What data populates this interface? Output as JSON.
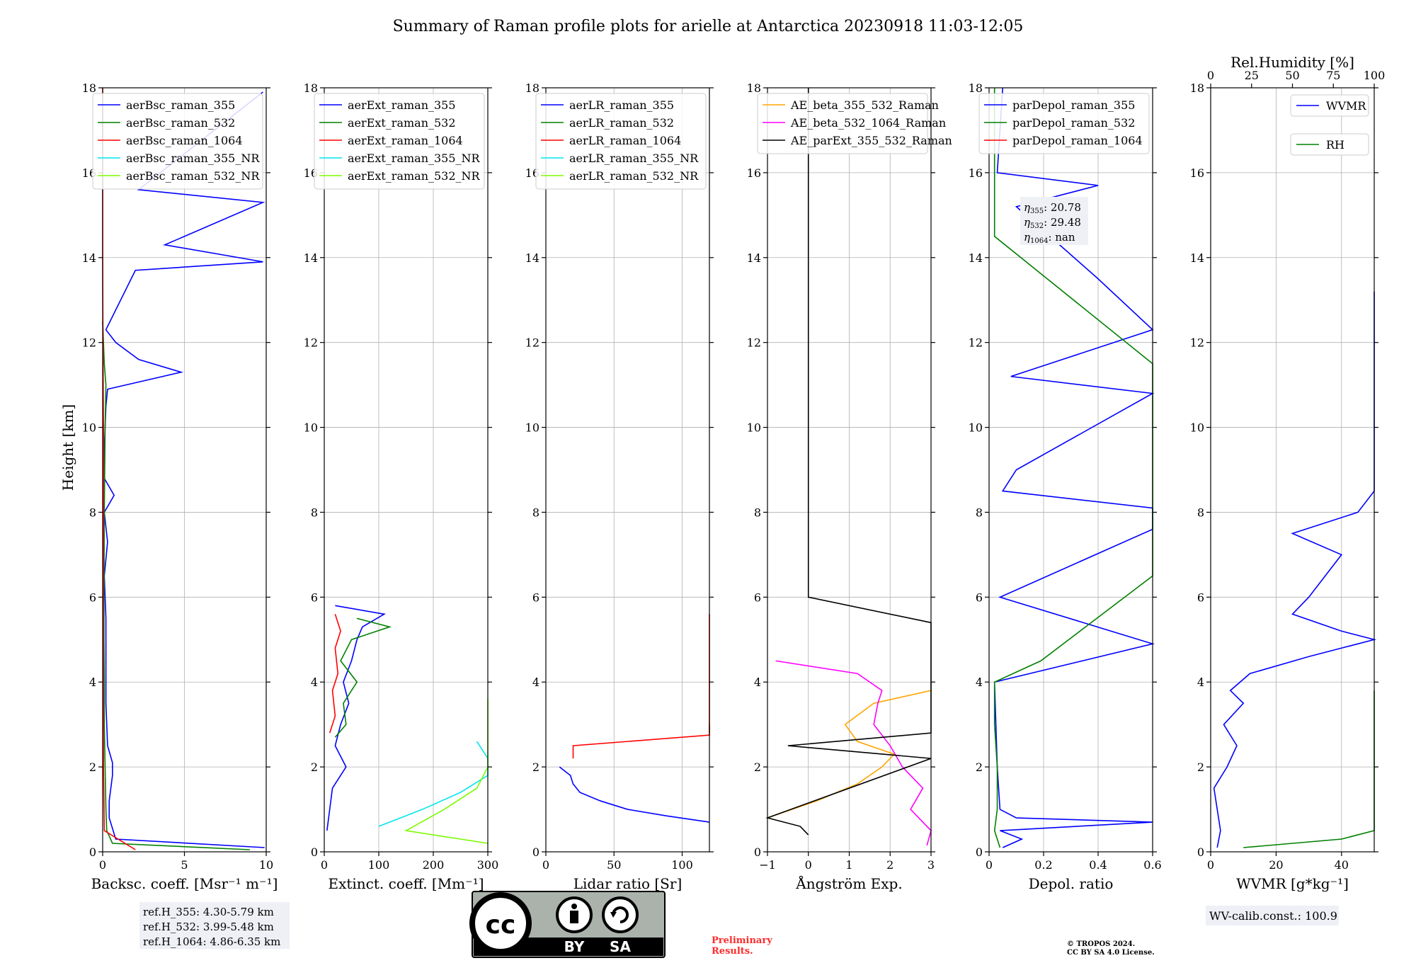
{
  "title": "Summary of Raman profile plots for arielle at Antarctica 20230918 11:03-12:05",
  "y_axis_label": "Height [km]",
  "chart_data": [
    {
      "type": "line",
      "id": "backscatter",
      "xlabel": "Backsc. coeff. [Msr⁻¹ m⁻¹]",
      "xlim": [
        0,
        10
      ],
      "xticks": [
        0,
        5,
        10
      ],
      "ylim": [
        0,
        18
      ],
      "yticks": [
        0,
        2,
        4,
        6,
        8,
        10,
        12,
        14,
        16,
        18
      ],
      "grid": true,
      "legend_position": "top-left",
      "series": [
        {
          "name": "aerBsc_raman_355",
          "color": "#0000ff",
          "y": [
            0.1,
            0.3,
            0.8,
            1.2,
            1.8,
            2.1,
            2.5,
            3.5,
            4.5,
            5.5,
            6.5,
            7.3,
            8.0,
            8.4,
            8.8,
            9.5,
            10.5,
            10.9,
            11.3,
            11.6,
            12.0,
            12.3,
            13.7,
            13.9,
            14.3,
            15.3,
            15.6,
            17.9
          ],
          "x": [
            9.9,
            0.8,
            0.4,
            0.4,
            0.6,
            0.6,
            0.3,
            0.2,
            0.2,
            0.2,
            0.1,
            0.3,
            0.1,
            0.7,
            0.1,
            0.1,
            0.2,
            0.3,
            4.8,
            2.2,
            0.8,
            0.2,
            2.0,
            9.8,
            3.8,
            9.8,
            2.2,
            9.8
          ]
        },
        {
          "name": "aerBsc_raman_532",
          "color": "#008000",
          "y": [
            0.05,
            0.2,
            0.5,
            1.0,
            2.0,
            3.0,
            4.0,
            5.0,
            6.0,
            8.0,
            10.0,
            11.0,
            11.5,
            12.0,
            12.5
          ],
          "x": [
            9.0,
            0.6,
            0.25,
            0.2,
            0.15,
            0.1,
            0.1,
            0.08,
            0.08,
            0.1,
            0.15,
            0.2,
            0.1,
            0.05,
            0.0
          ]
        },
        {
          "name": "aerBsc_raman_1064",
          "color": "#ff0000",
          "y": [
            0.05,
            0.5,
            2.0,
            4.0,
            6.0,
            8.0,
            10.0,
            12.0,
            14.0,
            16.0,
            18.0
          ],
          "x": [
            2.0,
            0.1,
            0.05,
            0.03,
            0.03,
            0.05,
            0.05,
            0.02,
            0.0,
            0.0,
            0.0
          ]
        },
        {
          "name": "aerBsc_raman_355_NR",
          "color": "#00e5ee",
          "y": [],
          "x": []
        },
        {
          "name": "aerBsc_raman_532_NR",
          "color": "#7cfc00",
          "y": [],
          "x": []
        }
      ]
    },
    {
      "type": "line",
      "id": "extinction",
      "xlabel": "Extinct. coeff. [Mm⁻¹]",
      "xlim": [
        0,
        300
      ],
      "xticks": [
        0,
        100,
        200,
        300
      ],
      "ylim": [
        0,
        18
      ],
      "yticks": [
        0,
        2,
        4,
        6,
        8,
        10,
        12,
        14,
        16,
        18
      ],
      "grid": true,
      "legend_position": "top-left",
      "series": [
        {
          "name": "aerExt_raman_355",
          "color": "#0000ff",
          "y": [
            0.5,
            1.0,
            1.5,
            2.0,
            2.5,
            3.0,
            3.5,
            4.0,
            4.5,
            5.0,
            5.3,
            5.6,
            5.8
          ],
          "x": [
            5,
            10,
            15,
            40,
            20,
            30,
            45,
            35,
            50,
            60,
            70,
            110,
            20
          ]
        },
        {
          "name": "aerExt_raman_532",
          "color": "#008000",
          "y": [
            2.7,
            3.0,
            3.5,
            4.0,
            4.5,
            5.0,
            5.3,
            5.5
          ],
          "x": [
            20,
            40,
            35,
            60,
            30,
            50,
            120,
            60
          ]
        },
        {
          "name": "aerExt_raman_1064",
          "color": "#ff0000",
          "y": [
            2.8,
            3.2,
            3.8,
            4.2,
            4.8,
            5.2,
            5.6
          ],
          "x": [
            10,
            20,
            15,
            25,
            20,
            30,
            20
          ]
        },
        {
          "name": "aerExt_raman_355_NR",
          "color": "#00e5ee",
          "y": [
            0.6,
            1.0,
            1.4,
            1.8,
            2.2,
            2.6
          ],
          "x": [
            100,
            180,
            250,
            300,
            300,
            280
          ]
        },
        {
          "name": "aerExt_raman_532_NR",
          "color": "#7cfc00",
          "y": [
            0.2,
            0.5,
            1.0,
            1.5,
            2.0,
            2.5,
            2.8,
            3.6
          ],
          "x": [
            300,
            150,
            220,
            280,
            300,
            300,
            300,
            300
          ]
        }
      ]
    },
    {
      "type": "line",
      "id": "lidar_ratio",
      "xlabel": "Lidar ratio [Sr]",
      "xlim": [
        0,
        120
      ],
      "xticks": [
        0,
        50,
        100
      ],
      "ylim": [
        0,
        18
      ],
      "yticks": [
        0,
        2,
        4,
        6,
        8,
        10,
        12,
        14,
        16,
        18
      ],
      "grid": true,
      "legend_position": "top-left",
      "series": [
        {
          "name": "aerLR_raman_355",
          "color": "#0000ff",
          "y": [
            0.7,
            0.85,
            1.0,
            1.2,
            1.4,
            1.6,
            1.8,
            2.0
          ],
          "x": [
            120,
            88,
            60,
            40,
            25,
            20,
            18,
            10
          ]
        },
        {
          "name": "aerLR_raman_532",
          "color": "#008000",
          "y": [
            2.8,
            3.0
          ],
          "x": [
            120,
            120
          ]
        },
        {
          "name": "aerLR_raman_1064",
          "color": "#ff0000",
          "y": [
            2.2,
            2.5,
            2.75,
            3.2,
            3.6,
            4.0,
            4.6,
            5.1,
            5.6
          ],
          "x": [
            20,
            20,
            120,
            120,
            120,
            120,
            120,
            120,
            120
          ]
        },
        {
          "name": "aerLR_raman_355_NR",
          "color": "#00e5ee",
          "y": [],
          "x": []
        },
        {
          "name": "aerLR_raman_532_NR",
          "color": "#7cfc00",
          "y": [],
          "x": []
        }
      ]
    },
    {
      "type": "line",
      "id": "angstrom",
      "xlabel": "Ångström Exp.",
      "xlim": [
        -1,
        3
      ],
      "xticks": [
        -1,
        0,
        1,
        2,
        3
      ],
      "ylim": [
        0,
        18
      ],
      "yticks": [
        0,
        2,
        4,
        6,
        8,
        10,
        12,
        14,
        16,
        18
      ],
      "grid": true,
      "legend_position": "top-left",
      "series": [
        {
          "name": "AE_beta_355_532_Raman",
          "color": "#ffa500",
          "y": [
            0.8,
            1.2,
            1.6,
            2.0,
            2.3,
            2.6,
            3.0,
            3.5,
            3.8
          ],
          "x": [
            -1.0,
            0.2,
            1.2,
            1.8,
            2.1,
            1.2,
            0.9,
            1.6,
            3.0
          ]
        },
        {
          "name": "AE_beta_532_1064_Raman",
          "color": "#ff00ff",
          "y": [
            0.15,
            0.5,
            1.0,
            1.5,
            2.0,
            2.5,
            3.0,
            3.5,
            3.8,
            4.2,
            4.5
          ],
          "x": [
            2.9,
            3.0,
            2.5,
            2.8,
            2.3,
            2.0,
            1.6,
            1.7,
            1.8,
            1.2,
            -0.8
          ]
        },
        {
          "name": "AE_parExt_355_532_Raman",
          "color": "#000000",
          "y": [
            0.4,
            0.6,
            0.8,
            2.2,
            2.5,
            2.8,
            3.5,
            3.9,
            4.4,
            4.9,
            5.4,
            6.0,
            18.0
          ],
          "x": [
            0.0,
            -0.2,
            -1.0,
            3.0,
            -0.5,
            3.0,
            3.0,
            3.0,
            3.0,
            3.0,
            3.0,
            0.0,
            0.0
          ]
        }
      ]
    },
    {
      "type": "line",
      "id": "depolarization",
      "xlabel": "Depol. ratio",
      "xlim": [
        0.0,
        0.6
      ],
      "xticks": [
        0.0,
        0.2,
        0.4,
        0.6
      ],
      "ylim": [
        0,
        18
      ],
      "yticks": [
        0,
        2,
        4,
        6,
        8,
        10,
        12,
        14,
        16,
        18
      ],
      "grid": true,
      "legend_position": "top-left",
      "series": [
        {
          "name": "parDepol_raman_355",
          "color": "#0000ff",
          "y": [
            0.1,
            0.3,
            0.5,
            0.7,
            0.8,
            1.0,
            2.0,
            4.0,
            4.9,
            6.0,
            7.6,
            8.1,
            8.5,
            9.0,
            10.8,
            11.2,
            12.3,
            13.5,
            15.2,
            15.7,
            16.0,
            18.0
          ],
          "x": [
            0.05,
            0.12,
            0.04,
            0.6,
            0.1,
            0.04,
            0.03,
            0.02,
            0.6,
            0.04,
            0.6,
            0.6,
            0.05,
            0.1,
            0.6,
            0.08,
            0.6,
            0.4,
            0.1,
            0.4,
            0.03,
            0.05
          ]
        },
        {
          "name": "parDepol_raman_532",
          "color": "#008000",
          "y": [
            0.1,
            0.5,
            1.0,
            2.0,
            3.0,
            4.0,
            4.5,
            6.5,
            9.3,
            10.1,
            11.0,
            11.5,
            14.5,
            18.0
          ],
          "x": [
            0.04,
            0.02,
            0.03,
            0.03,
            0.02,
            0.02,
            0.19,
            0.6,
            0.6,
            0.6,
            0.6,
            0.6,
            0.02,
            0.02
          ]
        },
        {
          "name": "parDepol_raman_1064",
          "color": "#ff0000",
          "y": [],
          "x": []
        }
      ],
      "annotation": {
        "eta_355": "20.78",
        "eta_532": "29.48",
        "eta_1064": "nan"
      }
    },
    {
      "type": "line",
      "id": "water_vapor",
      "xlabel": "WVMR [g*kg⁻¹]",
      "xlim": [
        0,
        50
      ],
      "xticks": [
        0,
        20,
        40
      ],
      "x2label": "Rel.Humidity [%]",
      "x2lim": [
        0,
        100
      ],
      "x2ticks": [
        0,
        25,
        50,
        75,
        100
      ],
      "ylim": [
        0,
        18
      ],
      "yticks": [
        0,
        2,
        4,
        6,
        8,
        10,
        12,
        14,
        16,
        18
      ],
      "grid": true,
      "legend_position": "top-right",
      "series": [
        {
          "name": "WVMR",
          "color": "#0000ff",
          "y": [
            0.1,
            0.5,
            1.0,
            1.5,
            2.0,
            2.5,
            3.0,
            3.5,
            3.8,
            4.2,
            4.6,
            5.0,
            5.2,
            5.6,
            6.0,
            6.5,
            7.0,
            7.5,
            8.0,
            8.5,
            13.2
          ],
          "x": [
            2,
            3,
            2,
            1,
            5,
            8,
            4,
            10,
            6,
            12,
            30,
            50,
            40,
            25,
            30,
            35,
            40,
            25,
            45,
            50,
            50
          ]
        },
        {
          "name": "RH",
          "color": "#008000",
          "y": [
            0.1,
            0.3,
            0.5,
            0.8,
            1.0,
            1.3,
            1.6,
            2.0,
            2.5,
            3.8
          ],
          "x": [
            10,
            40,
            60,
            80,
            100,
            100,
            100,
            100,
            100,
            100
          ]
        }
      ]
    }
  ],
  "reference_heights": {
    "line1": "ref.H_355: 4.30-5.79 km",
    "line2": "ref.H_532: 3.99-5.48 km",
    "line3": "ref.H_1064: 4.86-6.35 km"
  },
  "wv_calib": "WV-calib.const.: 100.9",
  "license_badge": {
    "by": "BY",
    "sa": "SA"
  },
  "preliminary": {
    "line1": "Preliminary",
    "line2": "Results."
  },
  "copyright": {
    "line1": "© TROPOS 2024.",
    "line2": "CC BY SA 4.0 License."
  },
  "colors": {
    "blue": "#0000ff",
    "green": "#008000",
    "red": "#ff0000",
    "cyan": "#00e5ee",
    "lime": "#7cfc00",
    "orange": "#ffa500",
    "magenta": "#ff00ff",
    "black": "#000000"
  }
}
